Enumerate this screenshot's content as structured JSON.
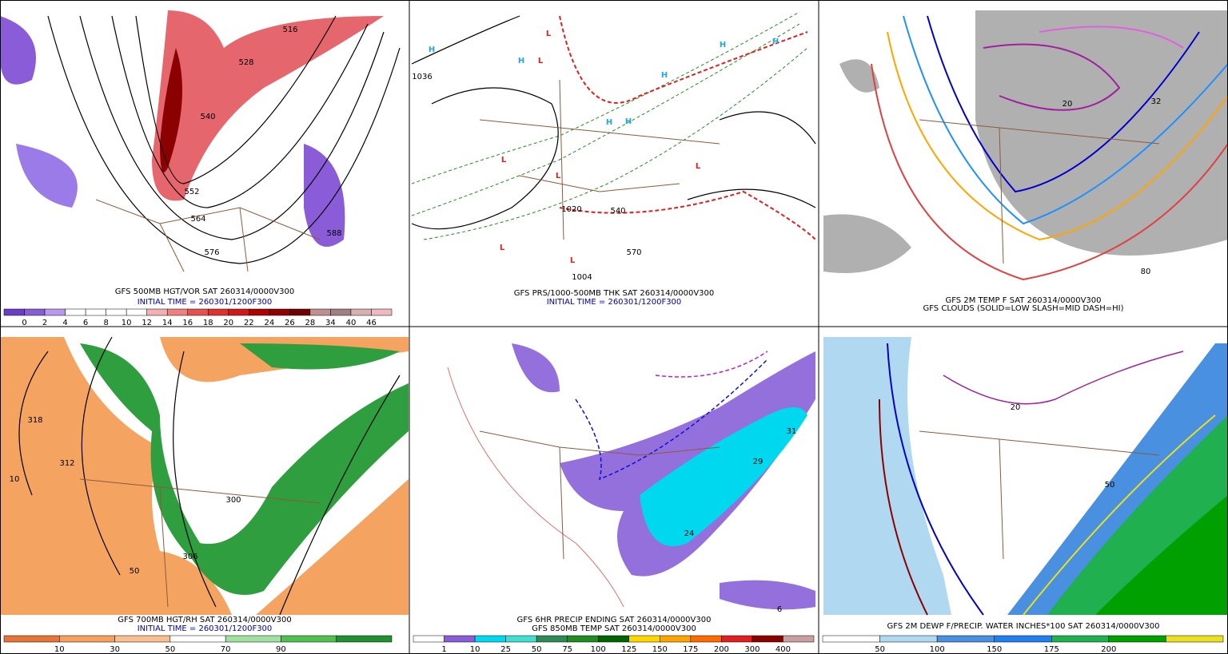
{
  "panels": [
    {
      "caption": [
        "GFS 500MB HGT/VOR SAT 260314/0000V300",
        "INITIAL TIME = 260301/1200F300"
      ],
      "colorbar": {
        "labels": [
          "0",
          "2",
          "4",
          "6",
          "8",
          "10",
          "12",
          "14",
          "16",
          "18",
          "20",
          "22",
          "24",
          "26",
          "28",
          "34",
          "40",
          "46"
        ]
      },
      "map_labels": [
        "516",
        "528",
        "540",
        "552",
        "564",
        "576",
        "588"
      ]
    },
    {
      "caption": [
        "GFS PRS/1000-500MB THK SAT 260314/0000V300",
        "INITIAL TIME = 260301/1200F300"
      ],
      "map_labels": [
        "1036",
        "1020",
        "1004",
        "540",
        "570",
        "H",
        "H",
        "H",
        "H",
        "H",
        "H",
        "H",
        "L",
        "L",
        "L",
        "L",
        "L",
        "L",
        "L"
      ]
    },
    {
      "caption": [
        "GFS 2M TEMP F SAT 260314/0000V300",
        "GFS CLOUDS (SOLID=LOW SLASH=MID DASH=HI)"
      ],
      "map_labels": [
        "80",
        "20",
        "32"
      ]
    },
    {
      "caption": [
        "GFS 700MB HGT/RH SAT 260314/0000V300",
        "INITIAL TIME = 260301/1200F300"
      ],
      "colorbar": {
        "labels": [
          "10",
          "30",
          "50",
          "70",
          "90"
        ]
      },
      "map_labels": [
        "318",
        "312",
        "300",
        "50",
        "306",
        "10"
      ]
    },
    {
      "caption": [
        "GFS 6HR PRECIP ENDING SAT 260314/0000V300",
        "GFS 850MB TEMP SAT 260314/0000V300"
      ],
      "colorbar": {
        "labels": [
          "1",
          "10",
          "25",
          "50",
          "75",
          "100",
          "125",
          "150",
          "175",
          "200",
          "300",
          "400"
        ]
      },
      "map_labels": [
        "24",
        "31",
        "6",
        "29"
      ]
    },
    {
      "caption": [
        "GFS 2M DEWP F/PRECIP. WATER INCHES*100 SAT 260314/0000V300"
      ],
      "colorbar": {
        "labels": [
          "50",
          "100",
          "150",
          "175",
          "200"
        ]
      },
      "map_labels": [
        "50",
        "20"
      ]
    }
  ]
}
